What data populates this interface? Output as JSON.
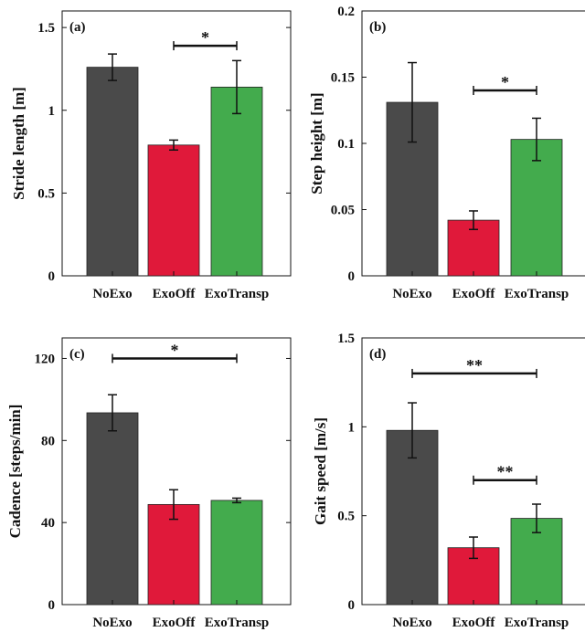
{
  "chart_data": [
    {
      "type": "bar",
      "panel_label": "(a)",
      "categories": [
        "NoExo",
        "ExoOff",
        "ExoTransp"
      ],
      "values": [
        1.26,
        0.79,
        1.14
      ],
      "errors": [
        0.08,
        0.03,
        0.16
      ],
      "colors": [
        "#4a4a4a",
        "#e0193a",
        "#43ab4d"
      ],
      "ylabel": "Stride length [m]",
      "ylim": [
        0,
        1.6
      ],
      "yticks": [
        0,
        0.5,
        1,
        1.5
      ],
      "ytick_labels": [
        "0",
        "0.5",
        "1",
        "1.5"
      ],
      "significance": [
        {
          "from": 1,
          "to": 2,
          "y": 1.39,
          "label": "*"
        }
      ]
    },
    {
      "type": "bar",
      "panel_label": "(b)",
      "categories": [
        "NoExo",
        "ExoOff",
        "ExoTransp"
      ],
      "values": [
        0.131,
        0.042,
        0.103
      ],
      "errors": [
        0.03,
        0.007,
        0.016
      ],
      "colors": [
        "#4a4a4a",
        "#e0193a",
        "#43ab4d"
      ],
      "ylabel": "Step height [m]",
      "ylim": [
        0,
        0.2
      ],
      "yticks": [
        0,
        0.05,
        0.1,
        0.15,
        0.2
      ],
      "ytick_labels": [
        "0",
        "0.05",
        "0.1",
        "0.15",
        "0.2"
      ],
      "significance": [
        {
          "from": 1,
          "to": 2,
          "y": 0.14,
          "label": "*"
        }
      ]
    },
    {
      "type": "bar",
      "panel_label": "(c)",
      "categories": [
        "NoExo",
        "ExoOff",
        "ExoTransp"
      ],
      "values": [
        93.5,
        48.8,
        50.8
      ],
      "errors": [
        8.8,
        7.2,
        1.1
      ],
      "colors": [
        "#4a4a4a",
        "#e0193a",
        "#43ab4d"
      ],
      "ylabel": "Cadence [steps/min]",
      "ylim": [
        0,
        130
      ],
      "yticks": [
        0,
        40,
        80,
        120
      ],
      "ytick_labels": [
        "0",
        "40",
        "80",
        "120"
      ],
      "significance": [
        {
          "from": 0,
          "to": 2,
          "y": 120,
          "label": "*"
        }
      ]
    },
    {
      "type": "bar",
      "panel_label": "(d)",
      "categories": [
        "NoExo",
        "ExoOff",
        "ExoTransp"
      ],
      "values": [
        0.98,
        0.32,
        0.485
      ],
      "errors": [
        0.155,
        0.06,
        0.08
      ],
      "colors": [
        "#4a4a4a",
        "#e0193a",
        "#43ab4d"
      ],
      "ylabel": "Gait speed [m/s]",
      "ylim": [
        0,
        1.5
      ],
      "yticks": [
        0,
        0.5,
        1,
        1.5
      ],
      "ytick_labels": [
        "0",
        "0.5",
        "1",
        "1.5"
      ],
      "significance": [
        {
          "from": 0,
          "to": 2,
          "y": 1.3,
          "label": "**"
        },
        {
          "from": 1,
          "to": 2,
          "y": 0.7,
          "label": "**"
        }
      ]
    }
  ]
}
